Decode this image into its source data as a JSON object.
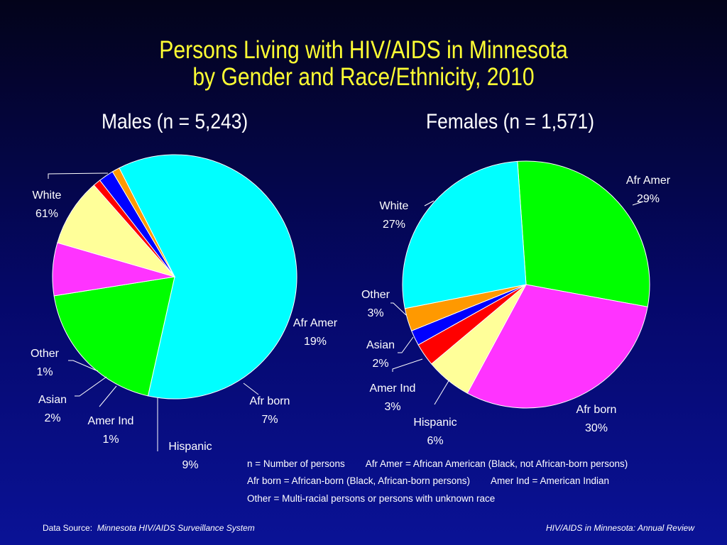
{
  "title_line1": "Persons Living with HIV/AIDS in Minnesota",
  "title_line2": "by Gender and Race/Ethnicity, 2010",
  "colors": {
    "White": "#00ffff",
    "Afr Amer": "#00ff00",
    "Afr born": "#ff33ff",
    "Hispanic": "#ffff99",
    "Amer Ind": "#ff0000",
    "Asian": "#0000ff",
    "Other": "#ff9900"
  },
  "chart_data": [
    {
      "type": "pie",
      "title": "Males (n = 5,243)",
      "slices": [
        {
          "name": "White",
          "value": 61,
          "label": "61%"
        },
        {
          "name": "Afr Amer",
          "value": 19,
          "label": "19%"
        },
        {
          "name": "Afr born",
          "value": 7,
          "label": "7%"
        },
        {
          "name": "Hispanic",
          "value": 9,
          "label": "9%"
        },
        {
          "name": "Amer Ind",
          "value": 1,
          "label": "1%"
        },
        {
          "name": "Asian",
          "value": 2,
          "label": "2%"
        },
        {
          "name": "Other",
          "value": 1,
          "label": "1%"
        }
      ]
    },
    {
      "type": "pie",
      "title": "Females (n = 1,571)",
      "slices": [
        {
          "name": "Afr Amer",
          "value": 29,
          "label": "29%"
        },
        {
          "name": "Afr born",
          "value": 30,
          "label": "30%"
        },
        {
          "name": "Hispanic",
          "value": 6,
          "label": "6%"
        },
        {
          "name": "Amer Ind",
          "value": 3,
          "label": "3%"
        },
        {
          "name": "Asian",
          "value": 2,
          "label": "2%"
        },
        {
          "name": "Other",
          "value": 3,
          "label": "3%"
        },
        {
          "name": "White",
          "value": 27,
          "label": "27%"
        }
      ]
    }
  ],
  "legend": {
    "n_def": "n = Number of persons",
    "afr_amer_def": "Afr Amer = African American (Black, not African-born persons)",
    "afr_born_def": "Afr born = African-born (Black, African-born persons)",
    "amer_ind_def": "Amer Ind = American Indian",
    "other_def": "Other = Multi-racial persons or persons with unknown race"
  },
  "footer": {
    "source_label": "Data Source:",
    "source_name": "Minnesota HIV/AIDS Surveillance System",
    "report_name": "HIV/AIDS in Minnesota: Annual Review"
  }
}
